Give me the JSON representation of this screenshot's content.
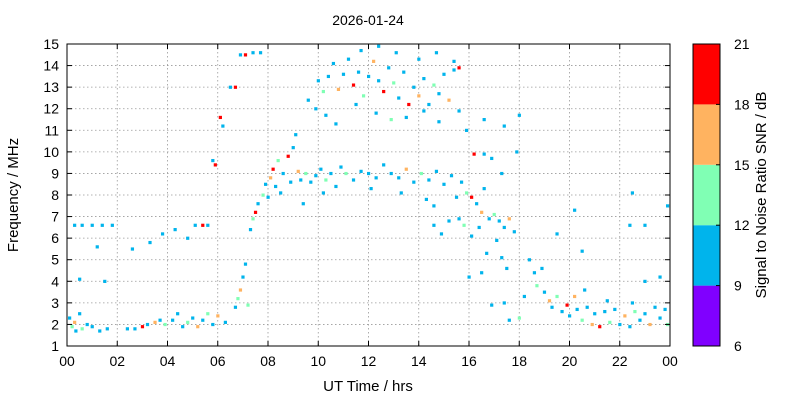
{
  "chart_data": {
    "type": "scatter",
    "title": "2026-01-24",
    "xlabel": "UT Time / hrs",
    "ylabel": "Frequency / MHz",
    "xlim": [
      0,
      24
    ],
    "ylim": [
      1,
      15
    ],
    "x_tick_labels": [
      "00",
      "02",
      "04",
      "06",
      "08",
      "10",
      "12",
      "14",
      "16",
      "18",
      "20",
      "22",
      "00"
    ],
    "y_tick_labels": [
      "1",
      "2",
      "3",
      "4",
      "5",
      "6",
      "7",
      "8",
      "9",
      "10",
      "11",
      "12",
      "13",
      "14",
      "15"
    ],
    "grid": true,
    "colorbar": {
      "label": "Signal to Noise Ratio SNR / dB",
      "ticks": [
        "6",
        "9",
        "12",
        "15",
        "18",
        "21"
      ],
      "bins": [
        {
          "from": 6,
          "to": 9,
          "color": "#8000ff"
        },
        {
          "from": 9,
          "to": 12,
          "color": "#00b4ec"
        },
        {
          "from": 12,
          "to": 15,
          "color": "#80ffb4"
        },
        {
          "from": 15,
          "to": 18,
          "color": "#ffb360"
        },
        {
          "from": 18,
          "to": 21,
          "color": "#ff0000"
        }
      ]
    },
    "points": [
      [
        0.1,
        2.3,
        10
      ],
      [
        0.2,
        1.9,
        12
      ],
      [
        0.3,
        2.1,
        16
      ],
      [
        0.35,
        1.7,
        10
      ],
      [
        0.5,
        2.5,
        10
      ],
      [
        0.6,
        1.8,
        13
      ],
      [
        0.8,
        2.0,
        10
      ],
      [
        1.0,
        1.9,
        10
      ],
      [
        1.3,
        1.7,
        10
      ],
      [
        1.6,
        1.8,
        10
      ],
      [
        0.3,
        6.6,
        10
      ],
      [
        0.6,
        6.6,
        10
      ],
      [
        1.0,
        6.6,
        10
      ],
      [
        1.4,
        6.6,
        10
      ],
      [
        1.8,
        6.6,
        10
      ],
      [
        0.5,
        4.1,
        10
      ],
      [
        1.2,
        5.6,
        10
      ],
      [
        1.5,
        4.0,
        10
      ],
      [
        2.4,
        1.8,
        10
      ],
      [
        2.7,
        1.8,
        10
      ],
      [
        3.0,
        1.9,
        19
      ],
      [
        3.2,
        2.0,
        10
      ],
      [
        3.5,
        2.1,
        16
      ],
      [
        3.7,
        2.2,
        10
      ],
      [
        3.9,
        2.0,
        13
      ],
      [
        4.2,
        2.2,
        10
      ],
      [
        4.4,
        2.5,
        10
      ],
      [
        4.6,
        1.9,
        10
      ],
      [
        4.8,
        2.1,
        13
      ],
      [
        5.0,
        2.3,
        10
      ],
      [
        5.2,
        1.9,
        16
      ],
      [
        5.4,
        2.2,
        10
      ],
      [
        5.6,
        2.5,
        13
      ],
      [
        5.8,
        2.0,
        10
      ],
      [
        6.0,
        2.4,
        16
      ],
      [
        6.3,
        2.1,
        10
      ],
      [
        5.1,
        6.6,
        10
      ],
      [
        5.4,
        6.6,
        20
      ],
      [
        5.6,
        6.6,
        10
      ],
      [
        4.8,
        6.0,
        10
      ],
      [
        4.3,
        6.4,
        10
      ],
      [
        3.8,
        6.2,
        10
      ],
      [
        3.3,
        5.8,
        10
      ],
      [
        2.6,
        5.5,
        10
      ],
      [
        5.9,
        9.4,
        20
      ],
      [
        5.8,
        9.6,
        10
      ],
      [
        6.1,
        11.6,
        20
      ],
      [
        6.2,
        11.2,
        10
      ],
      [
        6.5,
        13.0,
        10
      ],
      [
        6.7,
        13.0,
        20
      ],
      [
        6.9,
        14.5,
        10
      ],
      [
        7.1,
        14.5,
        20
      ],
      [
        7.4,
        14.6,
        10
      ],
      [
        7.7,
        14.6,
        10
      ],
      [
        6.7,
        2.8,
        10
      ],
      [
        6.8,
        3.2,
        13
      ],
      [
        6.9,
        3.6,
        16
      ],
      [
        7.0,
        4.2,
        10
      ],
      [
        7.1,
        4.8,
        10
      ],
      [
        7.2,
        2.9,
        13
      ],
      [
        7.3,
        6.4,
        10
      ],
      [
        7.4,
        6.9,
        13
      ],
      [
        7.5,
        7.2,
        20
      ],
      [
        7.6,
        7.6,
        10
      ],
      [
        7.8,
        8.0,
        13
      ],
      [
        7.9,
        8.5,
        10
      ],
      [
        8.1,
        8.8,
        16
      ],
      [
        8.2,
        9.2,
        20
      ],
      [
        8.3,
        8.4,
        10
      ],
      [
        8.4,
        9.6,
        13
      ],
      [
        8.6,
        9.0,
        10
      ],
      [
        8.8,
        9.8,
        20
      ],
      [
        8.9,
        8.6,
        10
      ],
      [
        9.0,
        10.2,
        10
      ],
      [
        9.1,
        10.8,
        10
      ],
      [
        9.2,
        9.1,
        16
      ],
      [
        9.3,
        8.7,
        10
      ],
      [
        9.5,
        9.0,
        13
      ],
      [
        9.7,
        8.6,
        10
      ],
      [
        9.9,
        8.9,
        10
      ],
      [
        10.1,
        9.2,
        10
      ],
      [
        10.3,
        8.7,
        13
      ],
      [
        10.5,
        9.0,
        10
      ],
      [
        10.7,
        8.4,
        10
      ],
      [
        10.9,
        9.3,
        10
      ],
      [
        11.1,
        9.0,
        13
      ],
      [
        11.4,
        8.7,
        10
      ],
      [
        11.7,
        9.1,
        10
      ],
      [
        12.0,
        9.0,
        10
      ],
      [
        12.3,
        8.8,
        10
      ],
      [
        12.6,
        9.4,
        10
      ],
      [
        12.9,
        9.0,
        10
      ],
      [
        13.2,
        8.8,
        10
      ],
      [
        13.5,
        9.2,
        16
      ],
      [
        13.8,
        8.6,
        10
      ],
      [
        14.1,
        9.0,
        13
      ],
      [
        14.4,
        8.7,
        10
      ],
      [
        14.7,
        9.1,
        10
      ],
      [
        15.0,
        8.5,
        10
      ],
      [
        15.3,
        8.9,
        10
      ],
      [
        8.0,
        7.9,
        10
      ],
      [
        8.5,
        8.1,
        10
      ],
      [
        9.4,
        7.6,
        10
      ],
      [
        10.2,
        8.1,
        10
      ],
      [
        12.1,
        8.3,
        10
      ],
      [
        13.3,
        8.1,
        10
      ],
      [
        14.3,
        7.8,
        10
      ],
      [
        14.6,
        7.5,
        10
      ],
      [
        15.5,
        7.9,
        10
      ],
      [
        10.0,
        13.3,
        10
      ],
      [
        10.2,
        12.8,
        13
      ],
      [
        10.4,
        13.5,
        10
      ],
      [
        10.6,
        14.1,
        10
      ],
      [
        10.8,
        12.9,
        16
      ],
      [
        11.0,
        13.6,
        10
      ],
      [
        11.2,
        14.3,
        10
      ],
      [
        11.4,
        13.1,
        20
      ],
      [
        11.6,
        13.7,
        10
      ],
      [
        11.8,
        12.6,
        13
      ],
      [
        12.0,
        13.5,
        10
      ],
      [
        12.2,
        14.2,
        16
      ],
      [
        12.4,
        13.3,
        10
      ],
      [
        12.6,
        12.8,
        20
      ],
      [
        12.8,
        13.9,
        10
      ],
      [
        13.0,
        13.2,
        13
      ],
      [
        13.2,
        12.5,
        10
      ],
      [
        13.4,
        13.7,
        10
      ],
      [
        13.6,
        12.2,
        20
      ],
      [
        13.8,
        13.0,
        10
      ],
      [
        14.0,
        12.6,
        16
      ],
      [
        14.2,
        13.4,
        10
      ],
      [
        14.4,
        12.2,
        10
      ],
      [
        14.6,
        13.1,
        13
      ],
      [
        14.8,
        12.7,
        10
      ],
      [
        15.0,
        13.6,
        10
      ],
      [
        15.2,
        12.4,
        16
      ],
      [
        15.4,
        13.8,
        10
      ],
      [
        15.6,
        13.9,
        20
      ],
      [
        11.5,
        12.2,
        10
      ],
      [
        12.3,
        11.8,
        10
      ],
      [
        12.9,
        11.5,
        13
      ],
      [
        13.5,
        11.6,
        10
      ],
      [
        14.2,
        11.9,
        10
      ],
      [
        14.8,
        11.4,
        10
      ],
      [
        10.7,
        11.3,
        10
      ],
      [
        10.3,
        11.7,
        10
      ],
      [
        9.6,
        12.4,
        10
      ],
      [
        9.9,
        12.0,
        10
      ],
      [
        15.6,
        11.9,
        10
      ],
      [
        11.7,
        14.7,
        10
      ],
      [
        12.4,
        14.9,
        10
      ],
      [
        13.1,
        14.6,
        10
      ],
      [
        14.0,
        14.3,
        10
      ],
      [
        14.7,
        14.6,
        10
      ],
      [
        15.4,
        14.2,
        10
      ],
      [
        15.7,
        8.6,
        10
      ],
      [
        15.9,
        8.1,
        13
      ],
      [
        16.1,
        7.9,
        20
      ],
      [
        16.3,
        7.6,
        10
      ],
      [
        16.5,
        7.2,
        16
      ],
      [
        16.6,
        8.3,
        10
      ],
      [
        16.8,
        6.9,
        10
      ],
      [
        17.0,
        7.1,
        13
      ],
      [
        17.2,
        6.8,
        10
      ],
      [
        17.4,
        6.5,
        10
      ],
      [
        17.6,
        6.9,
        16
      ],
      [
        17.8,
        6.3,
        10
      ],
      [
        16.2,
        9.9,
        20
      ],
      [
        16.6,
        9.9,
        10
      ],
      [
        16.9,
        9.7,
        10
      ],
      [
        15.6,
        6.9,
        10
      ],
      [
        15.8,
        6.6,
        13
      ],
      [
        16.1,
        6.1,
        10
      ],
      [
        16.4,
        6.5,
        10
      ],
      [
        16.7,
        5.3,
        10
      ],
      [
        17.1,
        5.9,
        10
      ],
      [
        17.3,
        5.1,
        10
      ],
      [
        17.5,
        4.6,
        10
      ],
      [
        16.0,
        4.2,
        10
      ],
      [
        16.5,
        4.4,
        10
      ],
      [
        15.2,
        6.8,
        10
      ],
      [
        14.9,
        6.2,
        10
      ],
      [
        14.6,
        6.6,
        10
      ],
      [
        18.4,
        5.0,
        10
      ],
      [
        18.6,
        4.4,
        10
      ],
      [
        18.7,
        3.8,
        13
      ],
      [
        18.9,
        4.6,
        10
      ],
      [
        19.0,
        3.5,
        10
      ],
      [
        19.2,
        3.1,
        16
      ],
      [
        19.3,
        2.8,
        10
      ],
      [
        19.5,
        3.3,
        13
      ],
      [
        19.7,
        2.6,
        10
      ],
      [
        19.9,
        2.9,
        19
      ],
      [
        20.0,
        2.4,
        10
      ],
      [
        20.2,
        3.3,
        16
      ],
      [
        20.3,
        2.7,
        10
      ],
      [
        20.5,
        2.2,
        13
      ],
      [
        20.7,
        2.8,
        10
      ],
      [
        20.9,
        2.0,
        16
      ],
      [
        21.0,
        2.5,
        10
      ],
      [
        21.2,
        1.9,
        20
      ],
      [
        21.4,
        2.6,
        10
      ],
      [
        21.6,
        2.1,
        13
      ],
      [
        21.8,
        2.7,
        10
      ],
      [
        22.0,
        2.0,
        10
      ],
      [
        22.2,
        2.4,
        16
      ],
      [
        22.4,
        1.9,
        10
      ],
      [
        22.6,
        2.6,
        13
      ],
      [
        22.8,
        2.2,
        10
      ],
      [
        23.0,
        2.5,
        10
      ],
      [
        23.2,
        2.0,
        16
      ],
      [
        23.4,
        2.8,
        10
      ],
      [
        23.6,
        2.3,
        10
      ],
      [
        23.8,
        2.7,
        10
      ],
      [
        23.9,
        2.0,
        13
      ],
      [
        18.2,
        3.3,
        10
      ],
      [
        18.0,
        2.3,
        13
      ],
      [
        17.6,
        2.2,
        10
      ],
      [
        17.4,
        3.0,
        10
      ],
      [
        16.9,
        2.9,
        10
      ],
      [
        20.6,
        3.6,
        10
      ],
      [
        21.5,
        3.1,
        10
      ],
      [
        22.5,
        3.0,
        10
      ],
      [
        23.0,
        4.0,
        10
      ],
      [
        23.6,
        4.2,
        10
      ],
      [
        22.4,
        6.6,
        10
      ],
      [
        23.0,
        6.6,
        10
      ],
      [
        20.5,
        5.4,
        10
      ],
      [
        19.5,
        6.2,
        10
      ],
      [
        20.2,
        7.3,
        10
      ],
      [
        22.5,
        8.1,
        10
      ],
      [
        23.9,
        7.5,
        10
      ],
      [
        17.3,
        9.0,
        10
      ],
      [
        17.9,
        10.0,
        10
      ],
      [
        18.0,
        11.7,
        10
      ],
      [
        17.4,
        11.2,
        10
      ],
      [
        16.6,
        11.5,
        10
      ],
      [
        15.9,
        11.0,
        10
      ]
    ]
  }
}
